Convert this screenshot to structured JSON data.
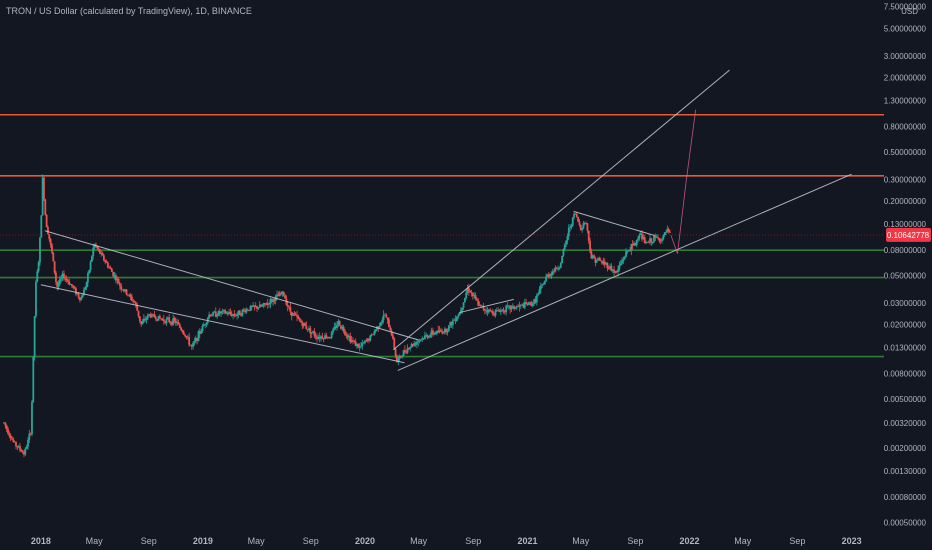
{
  "header": {
    "title": "TRON / US Dollar (calculated by TradingView), 1D, BINANCE",
    "currency": "USD"
  },
  "chart_data": {
    "type": "candlestick",
    "symbol": "TRXUSD",
    "interval": "1D",
    "yscale": "log",
    "ylim": [
      0.00045,
      8.5
    ],
    "xlim": [
      "2017-10-01",
      "2023-03-15"
    ],
    "current_price": "0.10642778",
    "y_ticks": [
      {
        "label": "7.50000000",
        "value": 7.5
      },
      {
        "label": "5.00000000",
        "value": 5.0
      },
      {
        "label": "3.00000000",
        "value": 3.0
      },
      {
        "label": "2.00000000",
        "value": 2.0
      },
      {
        "label": "1.30000000",
        "value": 1.3
      },
      {
        "label": "0.80000000",
        "value": 0.8
      },
      {
        "label": "0.50000000",
        "value": 0.5
      },
      {
        "label": "0.30000000",
        "value": 0.3
      },
      {
        "label": "0.20000000",
        "value": 0.2
      },
      {
        "label": "0.13000000",
        "value": 0.13
      },
      {
        "label": "0.08000000",
        "value": 0.08
      },
      {
        "label": "0.05000000",
        "value": 0.05
      },
      {
        "label": "0.03000000",
        "value": 0.03
      },
      {
        "label": "0.02000000",
        "value": 0.02
      },
      {
        "label": "0.01300000",
        "value": 0.013
      },
      {
        "label": "0.00800000",
        "value": 0.008
      },
      {
        "label": "0.00500000",
        "value": 0.005
      },
      {
        "label": "0.00320000",
        "value": 0.0032
      },
      {
        "label": "0.00200000",
        "value": 0.002
      },
      {
        "label": "0.00130000",
        "value": 0.0013
      },
      {
        "label": "0.00080000",
        "value": 0.0008
      },
      {
        "label": "0.00050000",
        "value": 0.0005
      }
    ],
    "x_ticks": [
      {
        "label": "2018",
        "date": "2018-01-01",
        "bold": true
      },
      {
        "label": "May",
        "date": "2018-05-01",
        "bold": false
      },
      {
        "label": "Sep",
        "date": "2018-09-01",
        "bold": false
      },
      {
        "label": "2019",
        "date": "2019-01-01",
        "bold": true
      },
      {
        "label": "May",
        "date": "2019-05-01",
        "bold": false
      },
      {
        "label": "Sep",
        "date": "2019-09-01",
        "bold": false
      },
      {
        "label": "2020",
        "date": "2020-01-01",
        "bold": true
      },
      {
        "label": "May",
        "date": "2020-05-01",
        "bold": false
      },
      {
        "label": "Sep",
        "date": "2020-09-01",
        "bold": false
      },
      {
        "label": "2021",
        "date": "2021-01-01",
        "bold": true
      },
      {
        "label": "May",
        "date": "2021-05-01",
        "bold": false
      },
      {
        "label": "Sep",
        "date": "2021-09-01",
        "bold": false
      },
      {
        "label": "2022",
        "date": "2022-01-01",
        "bold": true
      },
      {
        "label": "May",
        "date": "2022-05-01",
        "bold": false
      },
      {
        "label": "Sep",
        "date": "2022-09-01",
        "bold": false
      },
      {
        "label": "2023",
        "date": "2023-01-01",
        "bold": true
      }
    ],
    "price_path": [
      [
        "2017-10-10",
        0.0032
      ],
      [
        "2017-11-01",
        0.0022
      ],
      [
        "2017-11-25",
        0.0018
      ],
      [
        "2017-12-10",
        0.0028
      ],
      [
        "2017-12-20",
        0.04
      ],
      [
        "2017-12-28",
        0.07
      ],
      [
        "2018-01-04",
        0.22
      ],
      [
        "2018-01-05",
        0.3
      ],
      [
        "2018-01-12",
        0.14
      ],
      [
        "2018-01-25",
        0.08
      ],
      [
        "2018-02-06",
        0.04
      ],
      [
        "2018-02-20",
        0.05
      ],
      [
        "2018-03-10",
        0.042
      ],
      [
        "2018-04-01",
        0.032
      ],
      [
        "2018-04-15",
        0.045
      ],
      [
        "2018-05-01",
        0.09
      ],
      [
        "2018-05-15",
        0.075
      ],
      [
        "2018-06-01",
        0.06
      ],
      [
        "2018-06-15",
        0.05
      ],
      [
        "2018-07-01",
        0.04
      ],
      [
        "2018-08-01",
        0.03
      ],
      [
        "2018-08-15",
        0.02
      ],
      [
        "2018-09-01",
        0.024
      ],
      [
        "2018-10-01",
        0.022
      ],
      [
        "2018-11-01",
        0.021
      ],
      [
        "2018-11-20",
        0.017
      ],
      [
        "2018-12-07",
        0.013
      ],
      [
        "2018-12-20",
        0.016
      ],
      [
        "2019-01-15",
        0.024
      ],
      [
        "2019-02-15",
        0.025
      ],
      [
        "2019-03-15",
        0.024
      ],
      [
        "2019-04-15",
        0.027
      ],
      [
        "2019-05-15",
        0.028
      ],
      [
        "2019-06-15",
        0.033
      ],
      [
        "2019-07-01",
        0.036
      ],
      [
        "2019-07-15",
        0.026
      ],
      [
        "2019-08-15",
        0.02
      ],
      [
        "2019-09-15",
        0.016
      ],
      [
        "2019-10-15",
        0.016
      ],
      [
        "2019-11-01",
        0.021
      ],
      [
        "2019-12-01",
        0.015
      ],
      [
        "2019-12-20",
        0.013
      ],
      [
        "2020-01-15",
        0.016
      ],
      [
        "2020-02-15",
        0.024
      ],
      [
        "2020-03-01",
        0.017
      ],
      [
        "2020-03-13",
        0.01
      ],
      [
        "2020-04-01",
        0.0125
      ],
      [
        "2020-05-01",
        0.015
      ],
      [
        "2020-06-01",
        0.017
      ],
      [
        "2020-07-01",
        0.018
      ],
      [
        "2020-08-01",
        0.025
      ],
      [
        "2020-08-20",
        0.04
      ],
      [
        "2020-09-15",
        0.028
      ],
      [
        "2020-10-15",
        0.025
      ],
      [
        "2020-11-15",
        0.027
      ],
      [
        "2020-12-15",
        0.028
      ],
      [
        "2021-01-15",
        0.03
      ],
      [
        "2021-02-15",
        0.05
      ],
      [
        "2021-03-15",
        0.06
      ],
      [
        "2021-04-05",
        0.12
      ],
      [
        "2021-04-18",
        0.16
      ],
      [
        "2021-05-01",
        0.12
      ],
      [
        "2021-05-12",
        0.14
      ],
      [
        "2021-05-25",
        0.07
      ],
      [
        "2021-06-15",
        0.065
      ],
      [
        "2021-07-01",
        0.06
      ],
      [
        "2021-07-20",
        0.052
      ],
      [
        "2021-08-01",
        0.065
      ],
      [
        "2021-08-15",
        0.08
      ],
      [
        "2021-09-01",
        0.09
      ],
      [
        "2021-09-10",
        0.11
      ],
      [
        "2021-09-25",
        0.09
      ],
      [
        "2021-10-15",
        0.1
      ],
      [
        "2021-11-01",
        0.098
      ],
      [
        "2021-11-10",
        0.115
      ],
      [
        "2021-11-20",
        0.106
      ]
    ],
    "horizontal_levels": [
      {
        "price": 1.0,
        "color": "#e65a3a"
      },
      {
        "price": 0.32,
        "color": "#e65a3a"
      },
      {
        "price": 0.08,
        "color": "#2e7d32"
      },
      {
        "price": 0.048,
        "color": "#2e7d32"
      },
      {
        "price": 0.011,
        "color": "#2e7d32"
      }
    ],
    "trend_lines": [
      {
        "from": [
          "2018-01-10",
          0.115
        ],
        "to": [
          "2020-05-01",
          0.015
        ]
      },
      {
        "from": [
          "2018-01-01",
          0.042
        ],
        "to": [
          "2020-03-30",
          0.0098
        ]
      },
      {
        "from": [
          "2020-03-15",
          0.0085
        ],
        "to": [
          "2023-01-01",
          0.33
        ]
      },
      {
        "from": [
          "2020-03-05",
          0.0125
        ],
        "to": [
          "2022-04-01",
          2.3
        ]
      },
      {
        "from": [
          "2020-08-01",
          0.025
        ],
        "to": [
          "2020-12-01",
          0.032
        ]
      },
      {
        "from": [
          "2021-04-15",
          0.165
        ],
        "to": [
          "2021-10-15",
          0.105
        ]
      }
    ],
    "projection_path": [
      [
        "2021-11-20",
        0.106
      ],
      [
        "2021-12-05",
        0.075
      ],
      [
        "2021-12-25",
        0.3
      ],
      [
        "2022-01-15",
        1.1
      ]
    ],
    "colors": {
      "background": "#131722",
      "up": "#26a69a",
      "down": "#ef5350",
      "line": "#c8ccd6",
      "price_label": "#f23645",
      "projection": "#f06292",
      "text": "#b2b5be"
    }
  }
}
